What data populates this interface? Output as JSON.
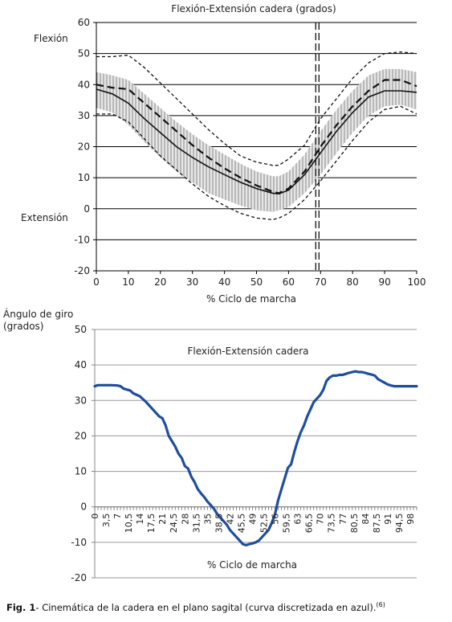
{
  "caption": {
    "label": "Fig. 1",
    "text": "- Cinemática de la cadera en el plano sagital (curva discretizada en azul).",
    "ref": "(6)"
  },
  "chart_data": [
    {
      "type": "line",
      "title": "Flexión-Extensión cadera (grados)",
      "xlabel": "% Ciclo de marcha",
      "ylabel": "",
      "y_top_label": "Flexión",
      "y_bottom_label": "Extensión",
      "xlim": [
        0,
        100
      ],
      "ylim": [
        -20,
        60
      ],
      "x_ticks": [
        0,
        10,
        20,
        30,
        40,
        50,
        60,
        70,
        80,
        90,
        100
      ],
      "y_ticks": [
        -20,
        -10,
        0,
        10,
        20,
        30,
        40,
        50,
        60
      ],
      "grid": "horizontal",
      "vline_x": 69,
      "series": [
        {
          "style": "solid",
          "x": [
            0,
            5,
            10,
            15,
            20,
            25,
            30,
            35,
            40,
            45,
            50,
            55,
            57,
            60,
            65,
            70,
            75,
            80,
            85,
            90,
            95,
            100
          ],
          "values": [
            38.5,
            37,
            34,
            29,
            24.5,
            20,
            16.5,
            13.5,
            11,
            8.5,
            6.5,
            5,
            4.8,
            6,
            11,
            18,
            25,
            31,
            36,
            38,
            38,
            37.5
          ]
        },
        {
          "style": "dashed",
          "x": [
            0,
            5,
            10,
            15,
            20,
            25,
            30,
            35,
            40,
            45,
            50,
            55,
            57,
            60,
            65,
            70,
            75,
            80,
            85,
            90,
            95,
            100
          ],
          "values": [
            40,
            39,
            38.5,
            34,
            29.5,
            25,
            20.5,
            16.5,
            13,
            10,
            7.5,
            5.5,
            5,
            6.5,
            12,
            20,
            27,
            33,
            38,
            41.5,
            41.5,
            39.5
          ]
        },
        {
          "style": "dotted",
          "x": [
            0,
            5,
            10,
            15,
            20,
            25,
            30,
            35,
            40,
            45,
            50,
            55,
            57,
            60,
            65,
            70,
            75,
            80,
            85,
            90,
            95,
            100
          ],
          "values": [
            49,
            49,
            49.5,
            45.5,
            40.5,
            35.5,
            30.5,
            25.5,
            21,
            17,
            15,
            14,
            14,
            16,
            20.5,
            29,
            35.5,
            42,
            47,
            50,
            50.5,
            50
          ]
        },
        {
          "style": "dotted",
          "x": [
            0,
            5,
            10,
            15,
            20,
            25,
            30,
            35,
            40,
            45,
            50,
            55,
            57,
            60,
            65,
            70,
            75,
            80,
            85,
            90,
            95,
            100
          ],
          "values": [
            30.5,
            30.5,
            28,
            22.5,
            17,
            12.5,
            8,
            4,
            1,
            -1.5,
            -3,
            -3.5,
            -3,
            -1.5,
            3,
            9,
            15.5,
            22,
            28,
            32,
            33,
            30.5
          ]
        }
      ],
      "band": {
        "x": [
          0,
          5,
          10,
          15,
          20,
          25,
          30,
          35,
          40,
          45,
          50,
          55,
          57,
          60,
          65,
          70,
          75,
          80,
          85,
          90,
          95,
          100
        ],
        "upper": [
          44,
          43,
          41.5,
          37,
          32.5,
          28,
          24,
          20.5,
          17.5,
          14.5,
          12,
          10.5,
          10.5,
          12,
          17.5,
          25,
          32,
          38,
          43,
          45,
          45,
          44
        ],
        "lower": [
          32.5,
          31,
          27,
          21.5,
          16.5,
          12,
          8.5,
          5,
          3,
          1,
          -0.5,
          -1,
          -0.5,
          0.5,
          5,
          11,
          18,
          24.5,
          30,
          33,
          33.5,
          32
        ]
      }
    },
    {
      "type": "line",
      "title": "Flexión-Extensión cadera",
      "xlabel": "% Ciclo de marcha",
      "ylabel": "Ángulo de giro\n(grados)",
      "xlim": [
        0,
        100
      ],
      "ylim": [
        -20,
        50
      ],
      "x_tick_labels": [
        "0",
        "3,5",
        "7",
        "10,5",
        "14",
        "17,5",
        "21",
        "24,5",
        "28",
        "31,5",
        "35",
        "38,5",
        "42",
        "45,5",
        "49",
        "52,5",
        "56",
        "59,5",
        "63",
        "66,5",
        "70",
        "73,5",
        "77",
        "80,5",
        "84",
        "87,5",
        "91",
        "94,5",
        "98"
      ],
      "y_ticks": [
        -20,
        -10,
        0,
        10,
        20,
        30,
        40,
        50
      ],
      "grid": "horizontal",
      "color": "#1f4e9f",
      "series": [
        {
          "x": [
            0,
            1,
            3,
            5,
            7,
            8,
            9,
            11,
            12,
            14,
            16,
            18,
            20,
            21,
            22,
            23,
            24,
            25,
            26,
            27,
            28,
            29,
            30,
            31,
            32,
            33,
            34,
            35,
            36,
            37,
            38,
            39,
            40,
            41,
            42,
            43,
            44,
            45,
            46,
            47,
            48,
            49,
            50,
            51,
            52,
            53,
            54,
            55,
            56,
            57,
            58,
            59,
            60,
            61,
            62,
            63,
            64,
            65,
            66,
            67,
            68,
            69,
            70,
            71,
            72,
            73,
            74,
            75,
            76,
            77,
            78,
            79,
            80,
            81,
            82,
            83,
            84,
            85,
            86,
            87,
            88,
            89,
            90,
            91,
            92,
            93,
            94,
            95,
            96,
            97,
            98,
            99,
            100
          ],
          "values": [
            34,
            34.3,
            34.3,
            34.3,
            34.2,
            34,
            33.3,
            32.8,
            32,
            31.2,
            29.5,
            27.5,
            25.5,
            25,
            23,
            20,
            18.5,
            17,
            15,
            13.8,
            11.5,
            10.8,
            8.5,
            7,
            5,
            3.8,
            2.8,
            1.5,
            0.5,
            -0.5,
            -2,
            -3,
            -4,
            -5,
            -6.5,
            -7.5,
            -8.5,
            -9.5,
            -10.5,
            -10.8,
            -10.5,
            -10.3,
            -10,
            -9.5,
            -8.5,
            -7.5,
            -6.5,
            -4.5,
            -2,
            2,
            5,
            8,
            11,
            12,
            15.5,
            18.5,
            21,
            23,
            25.5,
            27.5,
            29.5,
            30.5,
            31.5,
            33,
            35.5,
            36.5,
            37,
            37,
            37.2,
            37.2,
            37.5,
            37.8,
            38,
            38.2,
            38,
            38,
            37.8,
            37.5,
            37.3,
            37,
            36,
            35.5,
            35,
            34.5,
            34.2,
            34,
            34,
            34,
            34,
            34,
            34,
            34,
            34
          ]
        }
      ]
    }
  ]
}
